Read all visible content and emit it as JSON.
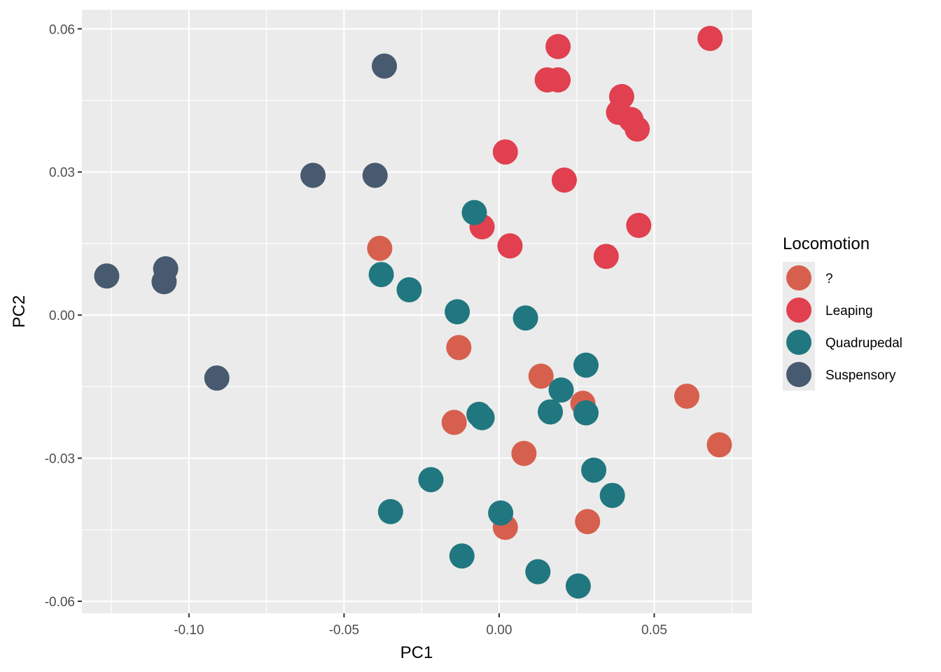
{
  "chart_data": {
    "type": "scatter",
    "title": "",
    "xlabel": "PC1",
    "ylabel": "PC2",
    "xlim": [
      -0.1345,
      0.0815
    ],
    "ylim": [
      -0.0625,
      0.064
    ],
    "x_ticks": [
      -0.1,
      -0.05,
      0.0,
      0.05
    ],
    "x_tick_labels": [
      "-0.10",
      "-0.05",
      "0.00",
      "0.05"
    ],
    "y_ticks": [
      -0.06,
      -0.03,
      0.0,
      0.03,
      0.06
    ],
    "y_tick_labels": [
      "-0.06",
      "-0.03",
      "0.00",
      "0.03",
      "0.06"
    ],
    "grid": true,
    "legend": {
      "title": "Locomotion",
      "position": "right"
    },
    "series": [
      {
        "name": "?",
        "color": "#D6604D",
        "points": [
          [
            -0.0385,
            0.014
          ],
          [
            -0.013,
            -0.0068
          ],
          [
            -0.0145,
            -0.0225
          ],
          [
            0.0135,
            -0.0128
          ],
          [
            0.027,
            -0.0185
          ],
          [
            0.008,
            -0.029
          ],
          [
            0.002,
            -0.0445
          ],
          [
            0.0285,
            -0.0433
          ],
          [
            0.0605,
            -0.017
          ],
          [
            0.071,
            -0.0272
          ]
        ]
      },
      {
        "name": "Leaping",
        "color": "#E0404F",
        "points": [
          [
            0.068,
            0.058
          ],
          [
            0.019,
            0.0563
          ],
          [
            0.0155,
            0.0493
          ],
          [
            0.019,
            0.0493
          ],
          [
            0.0395,
            0.0458
          ],
          [
            0.0385,
            0.0425
          ],
          [
            0.0425,
            0.041
          ],
          [
            0.0445,
            0.039
          ],
          [
            0.002,
            0.0342
          ],
          [
            0.021,
            0.0283
          ],
          [
            0.045,
            0.0188
          ],
          [
            -0.0055,
            0.0185
          ],
          [
            0.0035,
            0.0145
          ],
          [
            0.0345,
            0.0123
          ]
        ]
      },
      {
        "name": "Quadrupedal",
        "color": "#21777F",
        "points": [
          [
            -0.008,
            0.0215
          ],
          [
            -0.038,
            0.0085
          ],
          [
            -0.029,
            0.0053
          ],
          [
            -0.0135,
            0.0007
          ],
          [
            0.0085,
            -0.0006
          ],
          [
            0.028,
            -0.0105
          ],
          [
            0.02,
            -0.0157
          ],
          [
            0.0165,
            -0.0203
          ],
          [
            0.028,
            -0.0205
          ],
          [
            -0.0065,
            -0.0208
          ],
          [
            -0.0055,
            -0.0215
          ],
          [
            0.0305,
            -0.0325
          ],
          [
            0.0365,
            -0.0378
          ],
          [
            -0.022,
            -0.0345
          ],
          [
            -0.035,
            -0.0412
          ],
          [
            0.0005,
            -0.0415
          ],
          [
            -0.012,
            -0.0505
          ],
          [
            0.0125,
            -0.0538
          ],
          [
            0.0255,
            -0.0568
          ]
        ]
      },
      {
        "name": "Suspensory",
        "color": "#475A6F",
        "points": [
          [
            -0.037,
            0.0522
          ],
          [
            -0.06,
            0.0293
          ],
          [
            -0.04,
            0.0293
          ],
          [
            -0.1265,
            0.0082
          ],
          [
            -0.1075,
            0.0097
          ],
          [
            -0.108,
            0.007
          ],
          [
            -0.091,
            -0.0132
          ]
        ]
      }
    ]
  }
}
